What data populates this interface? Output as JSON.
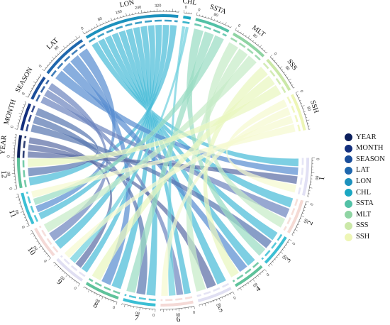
{
  "sectors": [
    {
      "id": "YEAR",
      "label": "YEAR",
      "color": "#0b1f5c",
      "track": "#c7d0ea",
      "ticks": [
        "0"
      ]
    },
    {
      "id": "MONTH",
      "label": "MONTH",
      "color": "#132f7e",
      "track": "#c7d0ea",
      "ticks": [
        "0"
      ]
    },
    {
      "id": "SEASON",
      "label": "SEASON",
      "color": "#1a4d9a",
      "track": "#c9d6ee",
      "ticks": [
        "0"
      ]
    },
    {
      "id": "LAT",
      "label": "LAT",
      "color": "#1f67ad",
      "track": "#cfdcf0",
      "ticks": [
        "0",
        "80"
      ]
    },
    {
      "id": "LON",
      "label": "LON",
      "color": "#1d91bd",
      "track": "#bfe1ee",
      "ticks": [
        "0",
        "80",
        "160",
        "240",
        "320"
      ]
    },
    {
      "id": "CHL",
      "label": "CHL",
      "color": "#1aa7c2",
      "track": "#bfe7ee",
      "ticks": [
        "0"
      ]
    },
    {
      "id": "SSTA",
      "label": "SSTA",
      "color": "#53c1a6",
      "track": "#cfece4",
      "ticks": [
        "0",
        "80"
      ]
    },
    {
      "id": "MLT",
      "label": "MLT",
      "color": "#8fd4a3",
      "track": "#ddf1e2",
      "ticks": [
        "0",
        "80"
      ]
    },
    {
      "id": "SSS",
      "label": "SSS",
      "color": "#cbe8a8",
      "track": "#ebf6dc",
      "ticks": [
        "0",
        "80"
      ]
    },
    {
      "id": "SSH",
      "label": "SSH",
      "color": "#eef6b6",
      "track": "#f8fbe2",
      "ticks": [
        "0",
        "80"
      ]
    },
    {
      "id": "m1",
      "label": "1",
      "color": "#e1e0f4",
      "track": "#e1e0f4",
      "ticks": [
        "0",
        "80"
      ]
    },
    {
      "id": "m2",
      "label": "2",
      "color": "#f5dad4",
      "track": "#f5dad4",
      "ticks": [
        "0",
        "80"
      ]
    },
    {
      "id": "m3",
      "label": "3",
      "color": "#3bbfd4",
      "track": "#3bbfd4",
      "ticks": [
        "0",
        "80"
      ]
    },
    {
      "id": "m4",
      "label": "4",
      "color": "#5ec29a",
      "track": "#5ec29a",
      "ticks": [
        "0",
        "80"
      ]
    },
    {
      "id": "m5",
      "label": "5",
      "color": "#e0dff2",
      "track": "#e0dff2",
      "ticks": [
        "0",
        "80"
      ]
    },
    {
      "id": "m6",
      "label": "6",
      "color": "#f4d9d6",
      "track": "#f4d9d6",
      "ticks": [
        "0",
        "80"
      ]
    },
    {
      "id": "m7",
      "label": "7",
      "color": "#3bbfd4",
      "track": "#3bbfd4",
      "ticks": [
        "0",
        "80"
      ]
    },
    {
      "id": "m8",
      "label": "8",
      "color": "#5ec29a",
      "track": "#5ec29a",
      "ticks": [
        "0",
        "80"
      ]
    },
    {
      "id": "m9",
      "label": "9",
      "color": "#e0dff2",
      "track": "#e0dff2",
      "ticks": [
        "0",
        "80"
      ]
    },
    {
      "id": "m10",
      "label": "10",
      "color": "#f4d9d6",
      "track": "#f4d9d6",
      "ticks": [
        "0",
        "80"
      ]
    },
    {
      "id": "m11",
      "label": "11",
      "color": "#3bbfd4",
      "track": "#3bbfd4",
      "ticks": [
        "0",
        "80"
      ]
    },
    {
      "id": "m12",
      "label": "12",
      "color": "#5ec29a",
      "track": "#5ec29a",
      "ticks": [
        "0",
        "80"
      ]
    }
  ],
  "links": [
    {
      "from": "LON",
      "to": "m1"
    },
    {
      "from": "LON",
      "to": "m2"
    },
    {
      "from": "LON",
      "to": "m3"
    },
    {
      "from": "LON",
      "to": "m4"
    },
    {
      "from": "LON",
      "to": "m5"
    },
    {
      "from": "LON",
      "to": "m6"
    },
    {
      "from": "LON",
      "to": "m7"
    },
    {
      "from": "LON",
      "to": "m8"
    },
    {
      "from": "LON",
      "to": "m9"
    },
    {
      "from": "LON",
      "to": "m10"
    },
    {
      "from": "LON",
      "to": "m11"
    },
    {
      "from": "LON",
      "to": "m12"
    },
    {
      "from": "LAT",
      "to": "m1"
    },
    {
      "from": "LAT",
      "to": "m4"
    },
    {
      "from": "LAT",
      "to": "m8"
    },
    {
      "from": "LAT",
      "to": "m11"
    },
    {
      "from": "SEASON",
      "to": "m2"
    },
    {
      "from": "SEASON",
      "to": "m6"
    },
    {
      "from": "SEASON",
      "to": "m10"
    },
    {
      "from": "MONTH",
      "to": "m3"
    },
    {
      "from": "MONTH",
      "to": "m7"
    },
    {
      "from": "MONTH",
      "to": "m12"
    },
    {
      "from": "YEAR",
      "to": "m1"
    },
    {
      "from": "YEAR",
      "to": "m5"
    },
    {
      "from": "YEAR",
      "to": "m9"
    },
    {
      "from": "CHL",
      "to": "m6"
    },
    {
      "from": "CHL",
      "to": "m9"
    },
    {
      "from": "SSTA",
      "to": "m3"
    },
    {
      "from": "SSTA",
      "to": "m7"
    },
    {
      "from": "SSTA",
      "to": "m11"
    },
    {
      "from": "MLT",
      "to": "m2"
    },
    {
      "from": "MLT",
      "to": "m5"
    },
    {
      "from": "MLT",
      "to": "m10"
    },
    {
      "from": "SSS",
      "to": "m4"
    },
    {
      "from": "SSS",
      "to": "m8"
    },
    {
      "from": "SSS",
      "to": "m12"
    },
    {
      "from": "SSH",
      "to": "m1"
    },
    {
      "from": "SSH",
      "to": "m6"
    },
    {
      "from": "SSH",
      "to": "m9"
    },
    {
      "from": "SSH",
      "to": "m11"
    }
  ],
  "legend": [
    {
      "label": "YEAR",
      "color": "#0b1f5c"
    },
    {
      "label": "MONTH",
      "color": "#132f7e"
    },
    {
      "label": "SEASON",
      "color": "#1a4d9a"
    },
    {
      "label": "LAT",
      "color": "#1f67ad"
    },
    {
      "label": "LON",
      "color": "#1d91bd"
    },
    {
      "label": "CHL",
      "color": "#1aa7c2"
    },
    {
      "label": "SSTA",
      "color": "#53c1a6"
    },
    {
      "label": "MLT",
      "color": "#8fd4a3"
    },
    {
      "label": "SSS",
      "color": "#cbe8a8"
    },
    {
      "label": "SSH",
      "color": "#eef6b6"
    }
  ]
}
